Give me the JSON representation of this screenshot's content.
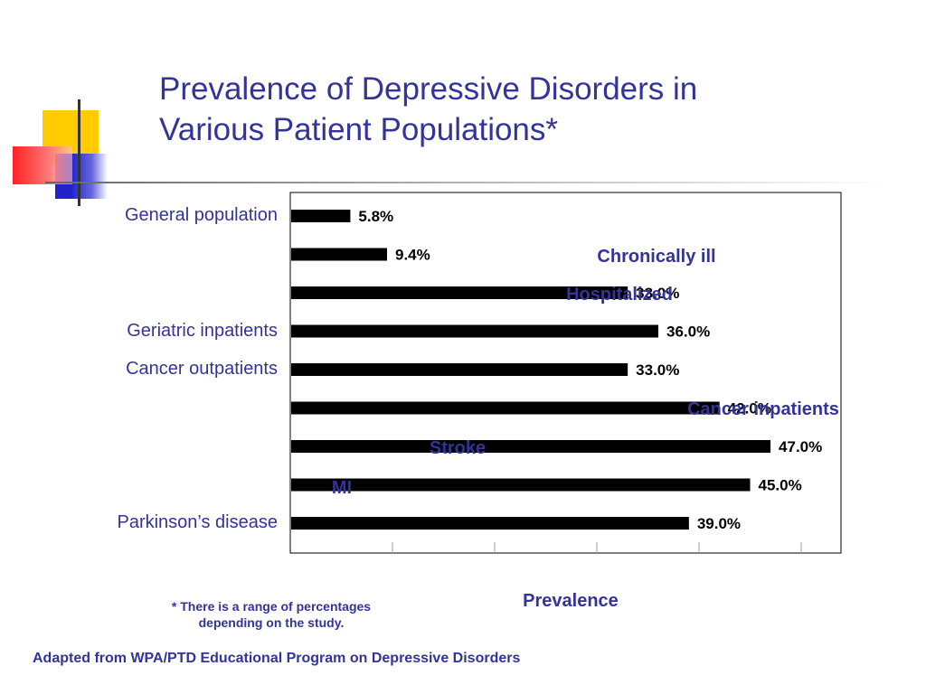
{
  "slide": {
    "title_line1": "Prevalence of Depressive Disorders in",
    "title_line2": "Various Patient Populations*",
    "footnote_line1": "* There is a range of percentages",
    "footnote_line2": "depending on the study.",
    "source": "Adapted from WPA/PTD Educational Program on Depressive Disorders",
    "colors": {
      "title": "#333399",
      "bar": "#000000",
      "deco_yellow": "#ffcc00",
      "deco_red": "#ff3333",
      "deco_blue": "#3333cc"
    }
  },
  "chart_data": {
    "type": "bar",
    "orientation": "horizontal",
    "xlabel": "Prevalence",
    "categories": [
      "General population",
      "Chronically ill",
      "Hospitalized",
      "Geriatric inpatients",
      "Cancer outpatients",
      "Cancer inpatients",
      "Stroke",
      "MI",
      "Parkinson’s disease"
    ],
    "values": [
      5.8,
      9.4,
      33.0,
      36.0,
      33.0,
      42.0,
      47.0,
      45.0,
      39.0
    ],
    "value_labels": [
      "5.8%",
      "9.4%",
      "33.0%",
      "36.0%",
      "33.0%",
      "42.0%",
      "47.0%",
      "45.0%",
      "39.0%"
    ],
    "xlim": [
      0,
      54
    ],
    "grid": false
  }
}
